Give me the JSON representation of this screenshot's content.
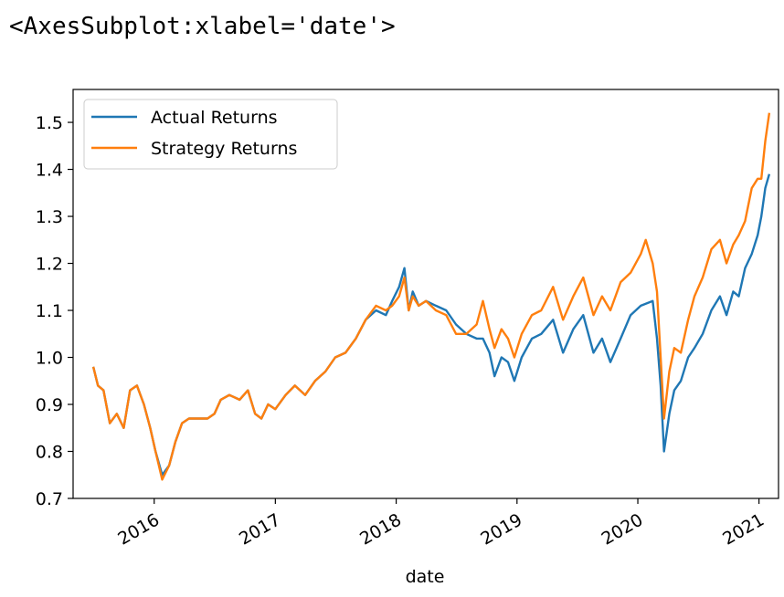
{
  "output_repr": "<AxesSubplot:xlabel='date'>",
  "chart_data": {
    "type": "line",
    "title": "",
    "xlabel": "date",
    "ylabel": "",
    "xlim": [
      "2015-05-01",
      "2021-03-01"
    ],
    "ylim": [
      0.7,
      1.57
    ],
    "yticks": [
      0.7,
      0.8,
      0.9,
      1.0,
      1.1,
      1.2,
      1.3,
      1.4,
      1.5
    ],
    "ytick_labels": [
      "0.7",
      "0.8",
      "0.9",
      "1.0",
      "1.1",
      "1.2",
      "1.3",
      "1.4",
      "1.5"
    ],
    "xticks": [
      "2016-01-01",
      "2017-01-01",
      "2018-01-01",
      "2019-01-01",
      "2020-01-01",
      "2021-01-01"
    ],
    "xtick_labels": [
      "2016",
      "2017",
      "2018",
      "2019",
      "2020",
      "2021"
    ],
    "grid": false,
    "legend": "upper-left",
    "series": [
      {
        "name": "Actual Returns",
        "color": "#1f77b4",
        "points": [
          [
            "2015-07-01",
            0.98
          ],
          [
            "2015-07-15",
            0.94
          ],
          [
            "2015-08-01",
            0.93
          ],
          [
            "2015-08-20",
            0.86
          ],
          [
            "2015-09-10",
            0.88
          ],
          [
            "2015-10-01",
            0.85
          ],
          [
            "2015-10-20",
            0.93
          ],
          [
            "2015-11-10",
            0.94
          ],
          [
            "2015-12-01",
            0.9
          ],
          [
            "2015-12-20",
            0.85
          ],
          [
            "2016-01-05",
            0.8
          ],
          [
            "2016-01-25",
            0.75
          ],
          [
            "2016-02-15",
            0.77
          ],
          [
            "2016-03-05",
            0.82
          ],
          [
            "2016-03-25",
            0.86
          ],
          [
            "2016-04-15",
            0.87
          ],
          [
            "2016-05-10",
            0.87
          ],
          [
            "2016-06-10",
            0.87
          ],
          [
            "2016-07-01",
            0.88
          ],
          [
            "2016-07-20",
            0.91
          ],
          [
            "2016-08-15",
            0.92
          ],
          [
            "2016-09-15",
            0.91
          ],
          [
            "2016-10-10",
            0.93
          ],
          [
            "2016-11-01",
            0.88
          ],
          [
            "2016-11-20",
            0.87
          ],
          [
            "2016-12-10",
            0.9
          ],
          [
            "2017-01-01",
            0.89
          ],
          [
            "2017-02-01",
            0.92
          ],
          [
            "2017-03-01",
            0.94
          ],
          [
            "2017-04-01",
            0.92
          ],
          [
            "2017-05-01",
            0.95
          ],
          [
            "2017-06-01",
            0.97
          ],
          [
            "2017-07-01",
            1.0
          ],
          [
            "2017-08-01",
            1.01
          ],
          [
            "2017-09-01",
            1.04
          ],
          [
            "2017-10-01",
            1.08
          ],
          [
            "2017-11-01",
            1.1
          ],
          [
            "2017-12-01",
            1.09
          ],
          [
            "2017-12-20",
            1.12
          ],
          [
            "2018-01-10",
            1.15
          ],
          [
            "2018-01-26",
            1.19
          ],
          [
            "2018-02-08",
            1.1
          ],
          [
            "2018-02-20",
            1.14
          ],
          [
            "2018-03-10",
            1.11
          ],
          [
            "2018-04-01",
            1.12
          ],
          [
            "2018-05-01",
            1.11
          ],
          [
            "2018-06-01",
            1.1
          ],
          [
            "2018-07-01",
            1.07
          ],
          [
            "2018-08-01",
            1.05
          ],
          [
            "2018-09-01",
            1.04
          ],
          [
            "2018-09-20",
            1.04
          ],
          [
            "2018-10-10",
            1.01
          ],
          [
            "2018-10-25",
            0.96
          ],
          [
            "2018-11-15",
            1.0
          ],
          [
            "2018-12-05",
            0.99
          ],
          [
            "2018-12-24",
            0.95
          ],
          [
            "2019-01-15",
            1.0
          ],
          [
            "2019-02-15",
            1.04
          ],
          [
            "2019-03-15",
            1.05
          ],
          [
            "2019-04-20",
            1.08
          ],
          [
            "2019-05-20",
            1.01
          ],
          [
            "2019-06-20",
            1.06
          ],
          [
            "2019-07-20",
            1.09
          ],
          [
            "2019-08-20",
            1.01
          ],
          [
            "2019-09-15",
            1.04
          ],
          [
            "2019-10-10",
            0.99
          ],
          [
            "2019-11-10",
            1.04
          ],
          [
            "2019-12-10",
            1.09
          ],
          [
            "2020-01-10",
            1.11
          ],
          [
            "2020-02-15",
            1.12
          ],
          [
            "2020-02-28",
            1.04
          ],
          [
            "2020-03-10",
            0.94
          ],
          [
            "2020-03-20",
            0.8
          ],
          [
            "2020-04-05",
            0.88
          ],
          [
            "2020-04-20",
            0.93
          ],
          [
            "2020-05-10",
            0.95
          ],
          [
            "2020-06-01",
            1.0
          ],
          [
            "2020-06-20",
            1.02
          ],
          [
            "2020-07-15",
            1.05
          ],
          [
            "2020-08-10",
            1.1
          ],
          [
            "2020-09-05",
            1.13
          ],
          [
            "2020-09-25",
            1.09
          ],
          [
            "2020-10-15",
            1.14
          ],
          [
            "2020-11-01",
            1.13
          ],
          [
            "2020-11-20",
            1.19
          ],
          [
            "2020-12-10",
            1.22
          ],
          [
            "2020-12-28",
            1.26
          ],
          [
            "2021-01-08",
            1.3
          ],
          [
            "2021-01-20",
            1.36
          ],
          [
            "2021-02-01",
            1.39
          ]
        ]
      },
      {
        "name": "Strategy Returns",
        "color": "#ff7f0e",
        "points": [
          [
            "2015-07-01",
            0.98
          ],
          [
            "2015-07-15",
            0.94
          ],
          [
            "2015-08-01",
            0.93
          ],
          [
            "2015-08-20",
            0.86
          ],
          [
            "2015-09-10",
            0.88
          ],
          [
            "2015-10-01",
            0.85
          ],
          [
            "2015-10-20",
            0.93
          ],
          [
            "2015-11-10",
            0.94
          ],
          [
            "2015-12-01",
            0.9
          ],
          [
            "2015-12-20",
            0.85
          ],
          [
            "2016-01-05",
            0.8
          ],
          [
            "2016-01-25",
            0.74
          ],
          [
            "2016-02-15",
            0.77
          ],
          [
            "2016-03-05",
            0.82
          ],
          [
            "2016-03-25",
            0.86
          ],
          [
            "2016-04-15",
            0.87
          ],
          [
            "2016-05-10",
            0.87
          ],
          [
            "2016-06-10",
            0.87
          ],
          [
            "2016-07-01",
            0.88
          ],
          [
            "2016-07-20",
            0.91
          ],
          [
            "2016-08-15",
            0.92
          ],
          [
            "2016-09-15",
            0.91
          ],
          [
            "2016-10-10",
            0.93
          ],
          [
            "2016-11-01",
            0.88
          ],
          [
            "2016-11-20",
            0.87
          ],
          [
            "2016-12-10",
            0.9
          ],
          [
            "2017-01-01",
            0.89
          ],
          [
            "2017-02-01",
            0.92
          ],
          [
            "2017-03-01",
            0.94
          ],
          [
            "2017-04-01",
            0.92
          ],
          [
            "2017-05-01",
            0.95
          ],
          [
            "2017-06-01",
            0.97
          ],
          [
            "2017-07-01",
            1.0
          ],
          [
            "2017-08-01",
            1.01
          ],
          [
            "2017-09-01",
            1.04
          ],
          [
            "2017-10-01",
            1.08
          ],
          [
            "2017-11-01",
            1.11
          ],
          [
            "2017-12-01",
            1.1
          ],
          [
            "2017-12-20",
            1.11
          ],
          [
            "2018-01-10",
            1.13
          ],
          [
            "2018-01-26",
            1.17
          ],
          [
            "2018-02-08",
            1.1
          ],
          [
            "2018-02-20",
            1.13
          ],
          [
            "2018-03-10",
            1.11
          ],
          [
            "2018-04-01",
            1.12
          ],
          [
            "2018-05-01",
            1.1
          ],
          [
            "2018-06-01",
            1.09
          ],
          [
            "2018-07-01",
            1.05
          ],
          [
            "2018-08-01",
            1.05
          ],
          [
            "2018-09-01",
            1.07
          ],
          [
            "2018-09-20",
            1.12
          ],
          [
            "2018-10-10",
            1.06
          ],
          [
            "2018-10-25",
            1.02
          ],
          [
            "2018-11-15",
            1.06
          ],
          [
            "2018-12-05",
            1.04
          ],
          [
            "2018-12-24",
            1.0
          ],
          [
            "2019-01-15",
            1.05
          ],
          [
            "2019-02-15",
            1.09
          ],
          [
            "2019-03-15",
            1.1
          ],
          [
            "2019-04-20",
            1.15
          ],
          [
            "2019-05-20",
            1.08
          ],
          [
            "2019-06-20",
            1.13
          ],
          [
            "2019-07-20",
            1.17
          ],
          [
            "2019-08-20",
            1.09
          ],
          [
            "2019-09-15",
            1.13
          ],
          [
            "2019-10-10",
            1.1
          ],
          [
            "2019-11-10",
            1.16
          ],
          [
            "2019-12-10",
            1.18
          ],
          [
            "2020-01-10",
            1.22
          ],
          [
            "2020-01-25",
            1.25
          ],
          [
            "2020-02-15",
            1.2
          ],
          [
            "2020-02-28",
            1.14
          ],
          [
            "2020-03-10",
            1.0
          ],
          [
            "2020-03-20",
            0.87
          ],
          [
            "2020-04-05",
            0.97
          ],
          [
            "2020-04-20",
            1.02
          ],
          [
            "2020-05-10",
            1.01
          ],
          [
            "2020-06-01",
            1.08
          ],
          [
            "2020-06-20",
            1.13
          ],
          [
            "2020-07-15",
            1.17
          ],
          [
            "2020-08-10",
            1.23
          ],
          [
            "2020-09-05",
            1.25
          ],
          [
            "2020-09-25",
            1.2
          ],
          [
            "2020-10-15",
            1.24
          ],
          [
            "2020-11-01",
            1.26
          ],
          [
            "2020-11-20",
            1.29
          ],
          [
            "2020-12-10",
            1.36
          ],
          [
            "2020-12-28",
            1.38
          ],
          [
            "2021-01-08",
            1.38
          ],
          [
            "2021-01-20",
            1.46
          ],
          [
            "2021-02-01",
            1.52
          ]
        ]
      }
    ]
  }
}
